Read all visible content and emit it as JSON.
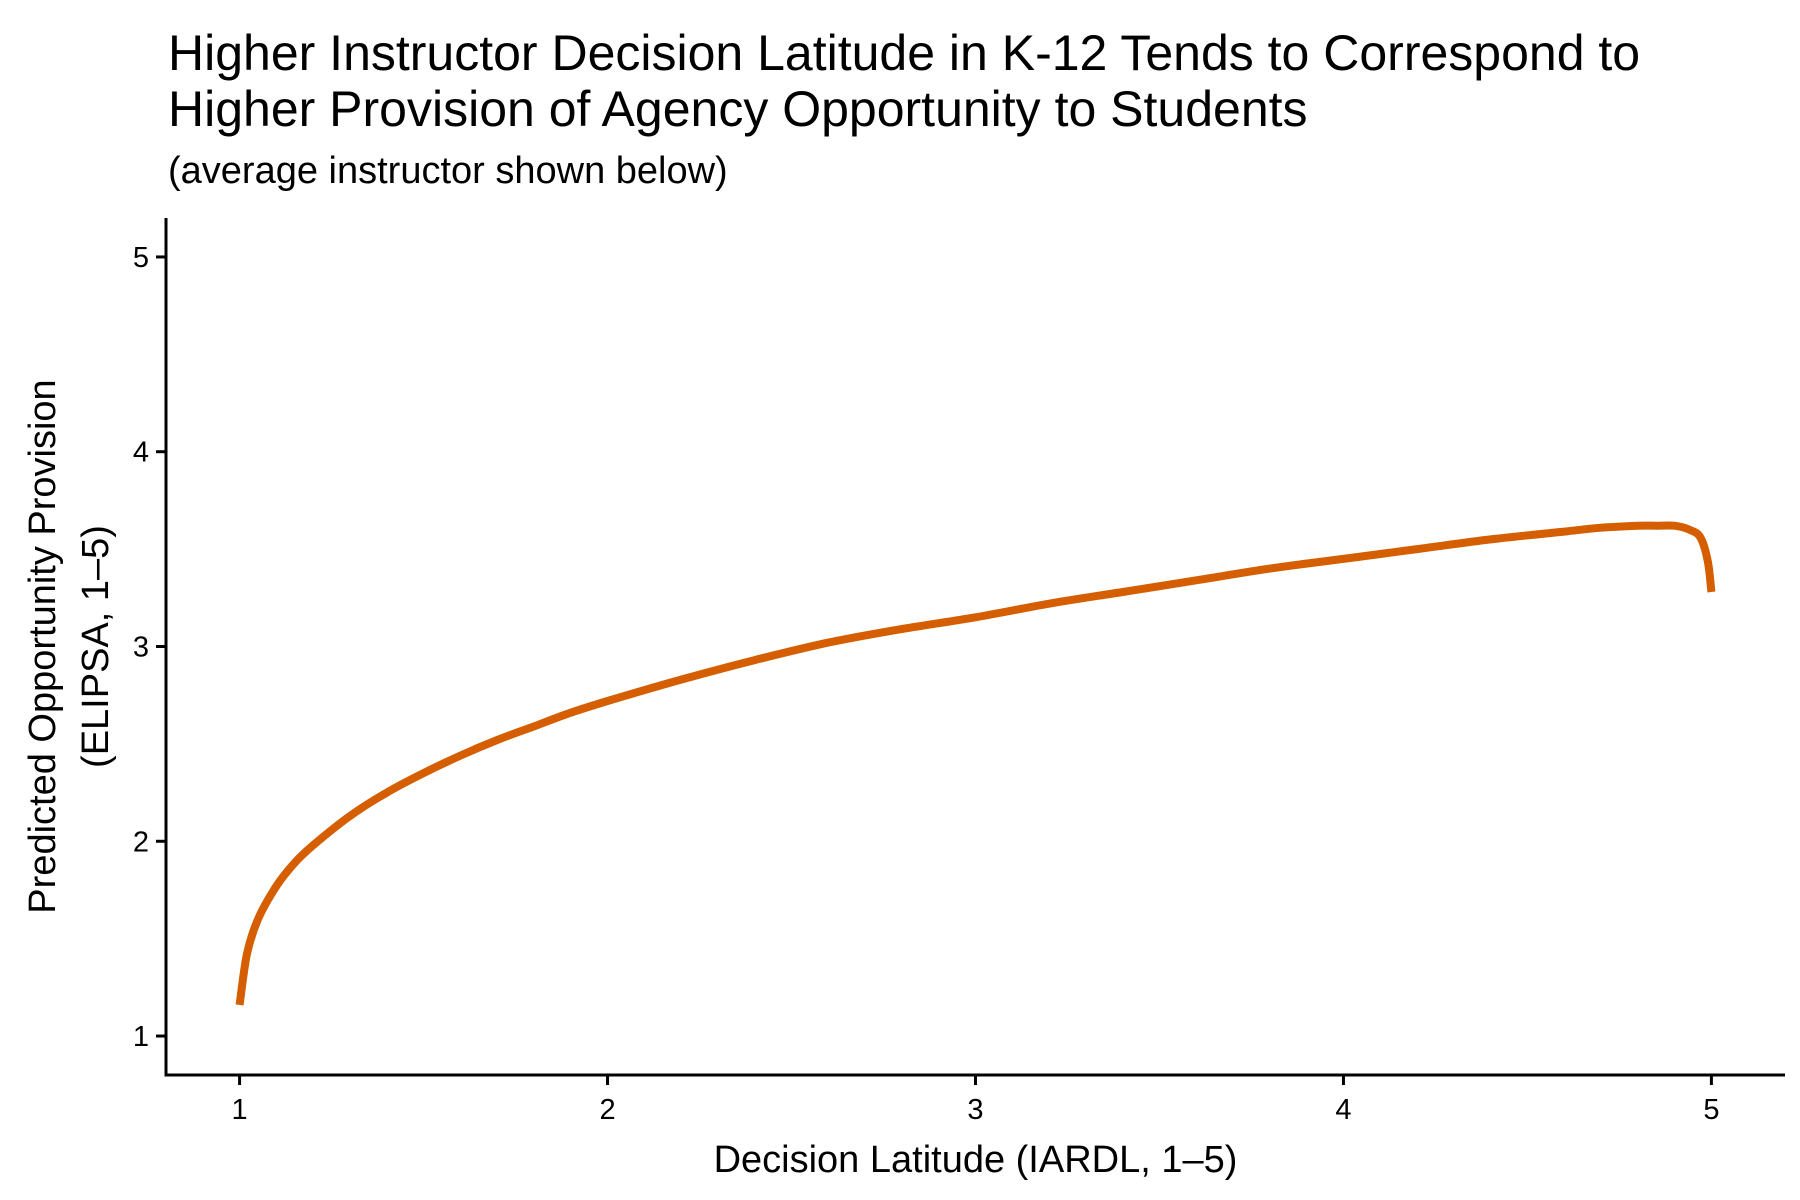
{
  "chart_data": {
    "type": "line",
    "title_lines": [
      "Higher Instructor Decision Latitude in K-12 Tends to Correspond to",
      "Higher Provision of Agency Opportunity to Students"
    ],
    "subtitle": "(average instructor shown below)",
    "xlabel": "Decision Latitude (IARDL, 1–5)",
    "ylabel_lines": [
      "Predicted Opportunity Provision",
      "(ELIPSA, 1–5)"
    ],
    "xlim": [
      0.8,
      5.2
    ],
    "ylim": [
      0.8,
      5.2
    ],
    "x_ticks": [
      1,
      2,
      3,
      4,
      5
    ],
    "y_ticks": [
      1,
      2,
      3,
      4,
      5
    ],
    "grid": false,
    "legend": "none",
    "series": [
      {
        "color": "#D55E00",
        "x": [
          1.0,
          1.02,
          1.05,
          1.1,
          1.15,
          1.2,
          1.3,
          1.4,
          1.5,
          1.6,
          1.7,
          1.8,
          1.9,
          2.0,
          2.2,
          2.4,
          2.6,
          2.8,
          3.0,
          3.2,
          3.4,
          3.6,
          3.8,
          4.0,
          4.2,
          4.4,
          4.6,
          4.7,
          4.8,
          4.85,
          4.9,
          4.94,
          4.97,
          4.99,
          5.0
        ],
        "y": [
          1.16,
          1.42,
          1.6,
          1.77,
          1.89,
          1.98,
          2.13,
          2.25,
          2.35,
          2.44,
          2.52,
          2.59,
          2.66,
          2.72,
          2.83,
          2.93,
          3.02,
          3.09,
          3.15,
          3.22,
          3.28,
          3.34,
          3.4,
          3.45,
          3.5,
          3.55,
          3.59,
          3.61,
          3.62,
          3.62,
          3.62,
          3.6,
          3.56,
          3.44,
          3.28
        ]
      }
    ]
  }
}
